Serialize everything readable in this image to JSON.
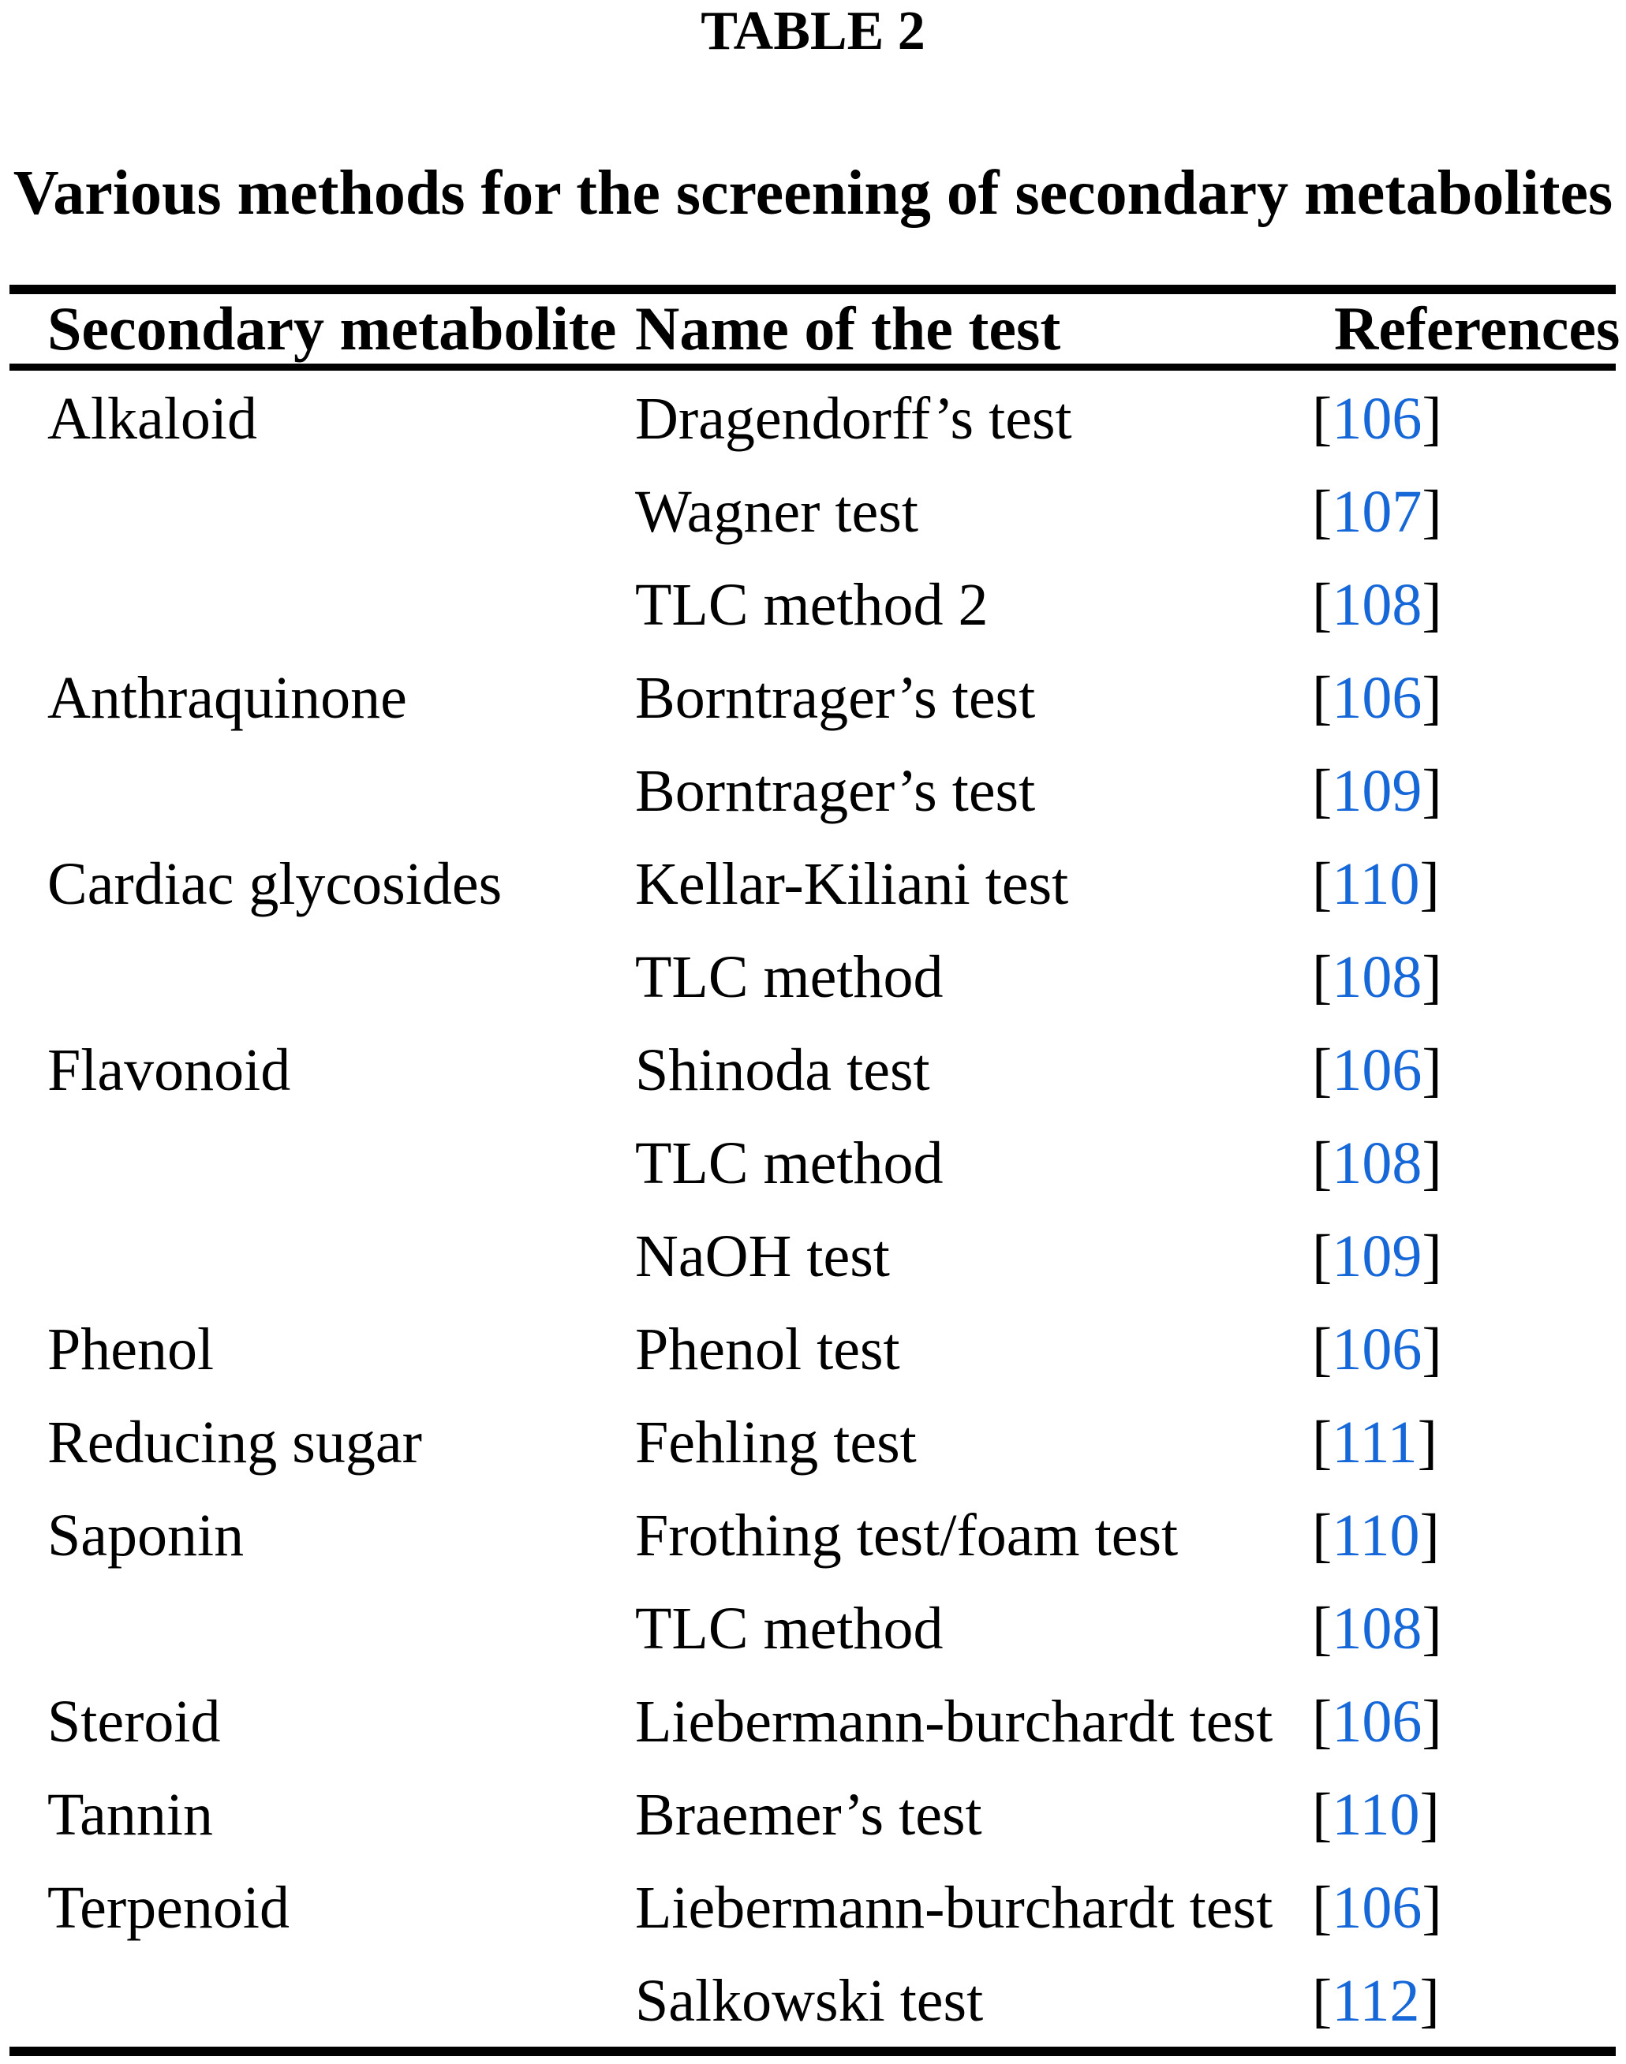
{
  "page": {
    "title": "TABLE 2",
    "subtitle": "Various methods for the screening of secondary metabolites"
  },
  "colors": {
    "text": "#000000",
    "reference_link": "#1667D8",
    "background": "#FFFFFF",
    "rule": "#000000"
  },
  "table": {
    "columns": [
      "Secondary metabolite",
      "Name of the test",
      "References"
    ],
    "ref_open": "[",
    "ref_close": "]",
    "rows": [
      {
        "metabolite": "Alkaloid",
        "test": "Dragendorff’s test",
        "ref": "106"
      },
      {
        "metabolite": "",
        "test": "Wagner test",
        "ref": "107"
      },
      {
        "metabolite": "",
        "test": "TLC method 2",
        "ref": "108"
      },
      {
        "metabolite": "Anthraquinone",
        "test": "Borntrager’s test",
        "ref": "106"
      },
      {
        "metabolite": "",
        "test": "Borntrager’s test",
        "ref": "109"
      },
      {
        "metabolite": "Cardiac glycosides",
        "test": "Kellar-Kiliani test",
        "ref": "110"
      },
      {
        "metabolite": "",
        "test": "TLC method",
        "ref": "108"
      },
      {
        "metabolite": "Flavonoid",
        "test": "Shinoda test",
        "ref": "106"
      },
      {
        "metabolite": "",
        "test": "TLC method",
        "ref": "108"
      },
      {
        "metabolite": "",
        "test": "NaOH test",
        "ref": "109"
      },
      {
        "metabolite": "Phenol",
        "test": "Phenol test",
        "ref": "106"
      },
      {
        "metabolite": "Reducing sugar",
        "test": "Fehling test",
        "ref": "111"
      },
      {
        "metabolite": "Saponin",
        "test": "Frothing test/foam test",
        "ref": "110"
      },
      {
        "metabolite": "",
        "test": "TLC method",
        "ref": "108"
      },
      {
        "metabolite": "Steroid",
        "test": "Liebermann-burchardt test",
        "ref": "106"
      },
      {
        "metabolite": "Tannin",
        "test": "Braemer’s test",
        "ref": "110"
      },
      {
        "metabolite": "Terpenoid",
        "test": "Liebermann-burchardt test",
        "ref": "106"
      },
      {
        "metabolite": "",
        "test": "Salkowski test",
        "ref": "112"
      }
    ]
  }
}
